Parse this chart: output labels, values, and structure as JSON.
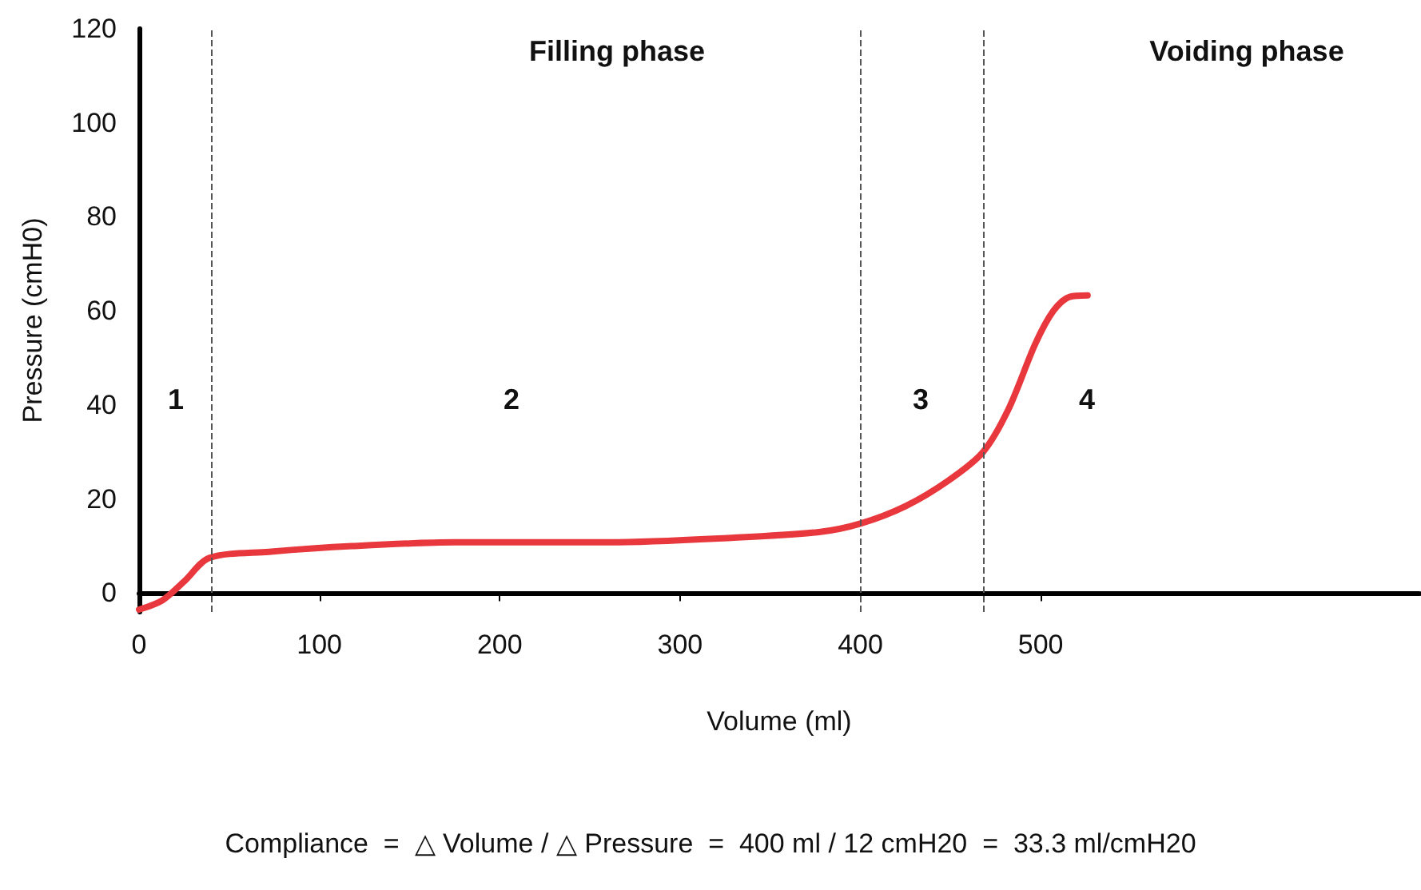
{
  "chart_data": {
    "type": "line",
    "xlabel": "Volume (ml)",
    "ylabel": "Pressure (cmH0)",
    "x": [
      0,
      13,
      25,
      39,
      72,
      118,
      175,
      259,
      330,
      377,
      400,
      425,
      449,
      468,
      482,
      497,
      507,
      516,
      526
    ],
    "series": [
      {
        "color": "#e8383d",
        "values": [
          -3.5,
          -1.5,
          2.5,
          7.5,
          8.8,
          10,
          10.8,
          10.8,
          11.8,
          13,
          14.8,
          18.5,
          24,
          30,
          39,
          53,
          60,
          63,
          63.3
        ]
      }
    ],
    "xlim": [
      0,
      710
    ],
    "xticks": [
      0,
      100,
      200,
      300,
      400,
      500
    ],
    "ylim": [
      -4,
      120
    ],
    "yticks": [
      0,
      20,
      40,
      60,
      80,
      100,
      120
    ],
    "grid": false,
    "marker": "none",
    "line_style": "solid",
    "ref_lines": [
      {
        "axis": "x",
        "value": 40,
        "label": null,
        "color": "#555555",
        "line_style": "dashed"
      },
      {
        "axis": "x",
        "value": 400,
        "label": null,
        "color": "#555555",
        "line_style": "dashed"
      },
      {
        "axis": "x",
        "value": 468,
        "label": null,
        "color": "#555555",
        "line_style": "dashed"
      }
    ],
    "annotations": [
      "1",
      "2",
      "3",
      "4",
      "Filling phase",
      "Voiding phase",
      "Compliance  =  △ Volume / △ Pressure  =  400 ml / 12 cmH20  =  33.3 ml/cmH20"
    ]
  }
}
